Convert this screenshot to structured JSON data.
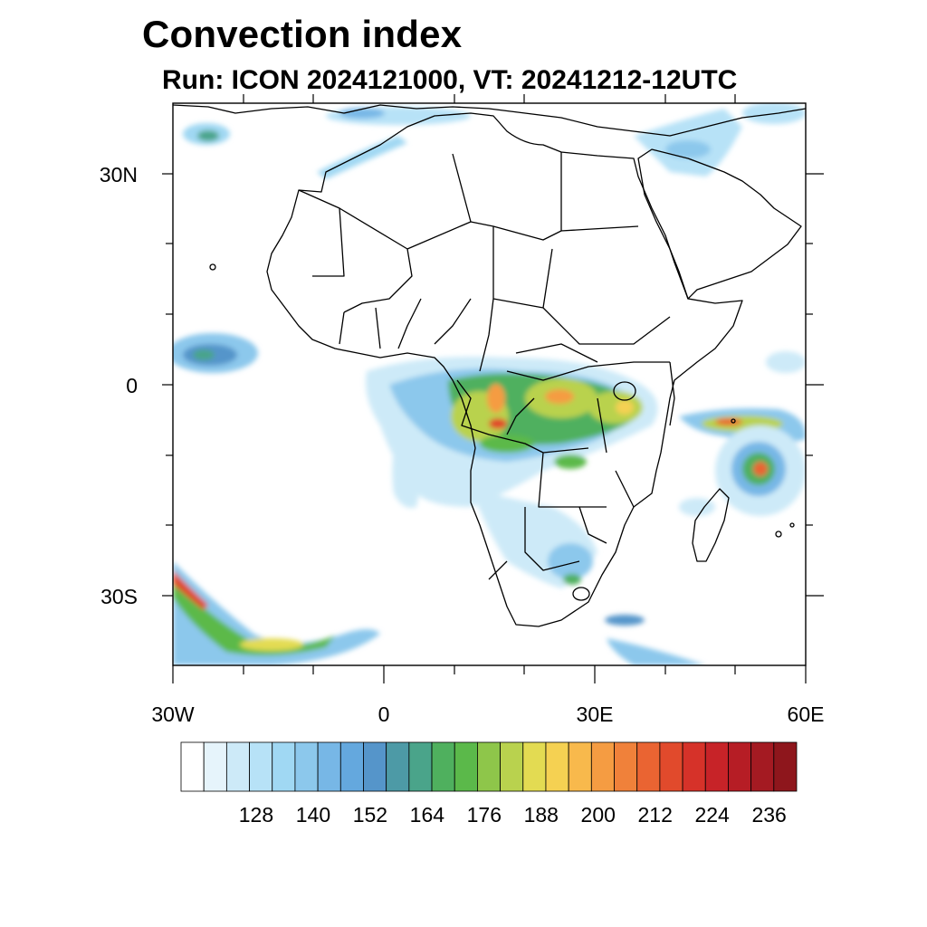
{
  "title": "Convection index",
  "subtitle": "Run: ICON 2024121000,  VT: 20241212-12UTC",
  "axes": {
    "lat_labels": [
      "30N",
      "0",
      "30S"
    ],
    "lon_labels": [
      "30W",
      "0",
      "30E",
      "60E"
    ],
    "lat_range": [
      -40,
      40
    ],
    "lon_range": [
      -30,
      60
    ]
  },
  "colorbar": {
    "labels": [
      "128",
      "140",
      "152",
      "164",
      "176",
      "188",
      "200",
      "212",
      "224",
      "236"
    ],
    "colors": [
      "#ffffff",
      "#e6f4fb",
      "#cdeaf8",
      "#b7e2f7",
      "#a0d8f3",
      "#8cc8ec",
      "#77b7e6",
      "#64a8de",
      "#5595ca",
      "#4d9aa6",
      "#4aa48a",
      "#4fb05e",
      "#5bb94a",
      "#8ec64a",
      "#b9d24e",
      "#e3db52",
      "#f5d152",
      "#f8b94c",
      "#f59c42",
      "#f0813a",
      "#ea6432",
      "#e14a2c",
      "#d63229",
      "#c72328",
      "#b61d25",
      "#a41a22",
      "#8e161c"
    ]
  },
  "field": {
    "name": "Convection index",
    "blobs": [
      {
        "lon": -27,
        "lat": 3,
        "level": 8
      },
      {
        "lon": -22,
        "lat": 38,
        "level": 5
      },
      {
        "lon": -5,
        "lat": 34,
        "level": 4
      },
      {
        "lon": 12,
        "lat": -1,
        "level": 16
      },
      {
        "lon": 15,
        "lat": -5,
        "level": 20
      },
      {
        "lon": 24,
        "lat": 0,
        "level": 18
      },
      {
        "lon": 34,
        "lat": -3,
        "level": 16
      },
      {
        "lon": 6,
        "lat": -5,
        "level": 4
      },
      {
        "lon": 22,
        "lat": -12,
        "level": 6
      },
      {
        "lon": 22,
        "lat": -25,
        "level": 5
      },
      {
        "lon": 52,
        "lat": -5,
        "level": 19
      },
      {
        "lon": 54,
        "lat": -12,
        "level": 20
      },
      {
        "lon": -27,
        "lat": -29,
        "level": 19
      },
      {
        "lon": -16,
        "lat": -37,
        "level": 14
      },
      {
        "lon": 42,
        "lat": -39,
        "level": 6
      },
      {
        "lon": 46,
        "lat": 33,
        "level": 5
      }
    ]
  }
}
